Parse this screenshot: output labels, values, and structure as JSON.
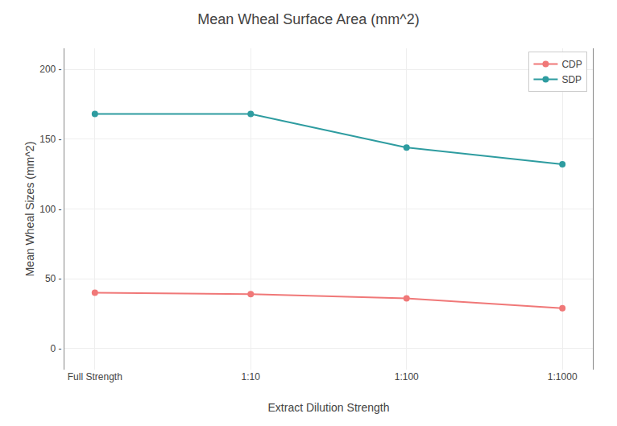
{
  "chart_data": {
    "type": "line",
    "title": "Mean Wheal Surface Area (mm^2)",
    "xlabel": "Extract Dilution Strength",
    "ylabel": "Mean Wheal Sizes (mm^2)",
    "categories": [
      "Full Strength",
      "1:10",
      "1:100",
      "1:1000"
    ],
    "series": [
      {
        "name": "CDP",
        "color": "#F07878",
        "values": [
          40,
          39,
          36,
          29
        ]
      },
      {
        "name": "SDP",
        "color": "#2E9CA0",
        "values": [
          168,
          168,
          144,
          132
        ]
      }
    ],
    "ylim": [
      -15,
      215
    ],
    "yticks": [
      {
        "value": 0,
        "label": "0 -"
      },
      {
        "value": 50,
        "label": "50 -"
      },
      {
        "value": 100,
        "label": "100 -"
      },
      {
        "value": 150,
        "label": "150 -"
      },
      {
        "value": 200,
        "label": "200 -"
      }
    ],
    "grid": true,
    "legend": "upper right",
    "marker": "circle"
  }
}
